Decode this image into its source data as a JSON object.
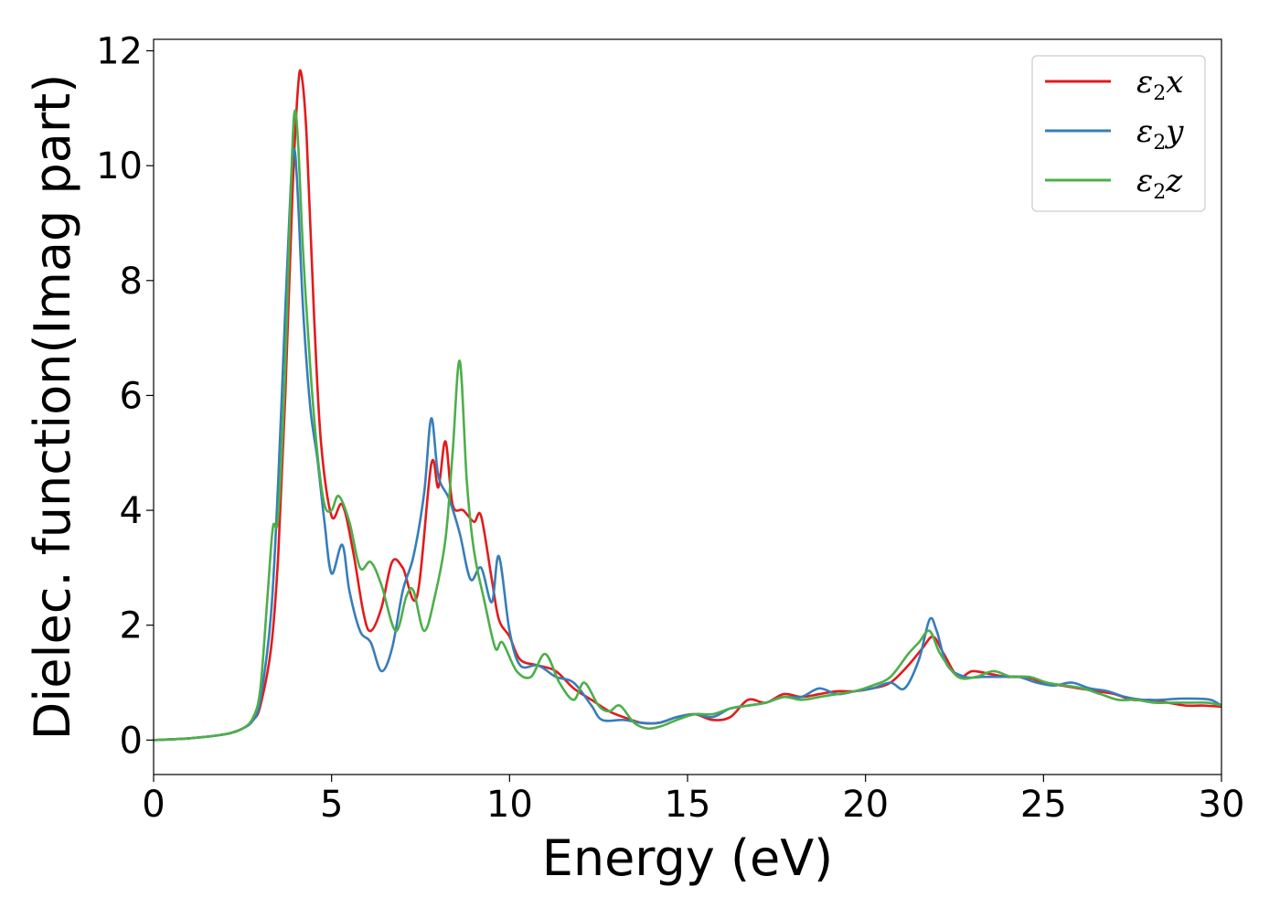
{
  "chart_data": {
    "type": "line",
    "xlabel": "Energy (eV)",
    "ylabel": "Dielec. function(Imag part)",
    "xlim": [
      0,
      30
    ],
    "ylim": [
      -0.6,
      12.2
    ],
    "xticks": [
      0,
      5,
      10,
      15,
      20,
      25,
      30
    ],
    "xtick_labels": [
      "0",
      "5",
      "10",
      "15",
      "20",
      "25",
      "30"
    ],
    "yticks": [
      0,
      2,
      4,
      6,
      8,
      10,
      12
    ],
    "ytick_labels": [
      "0",
      "2",
      "4",
      "6",
      "8",
      "10",
      "12"
    ],
    "grid": false,
    "legend_position": "top-right",
    "series": [
      {
        "name": "ε2x",
        "legend_base": "ε",
        "legend_sub": "2",
        "legend_suffix": "x",
        "color": "#e41a1c",
        "points": [
          [
            0,
            0
          ],
          [
            1,
            0.03
          ],
          [
            2,
            0.1
          ],
          [
            2.5,
            0.2
          ],
          [
            2.8,
            0.35
          ],
          [
            3,
            0.6
          ],
          [
            3.3,
            1.6
          ],
          [
            3.5,
            3.2
          ],
          [
            3.7,
            6
          ],
          [
            3.9,
            9.5
          ],
          [
            4.05,
            11.3
          ],
          [
            4.15,
            11.6
          ],
          [
            4.3,
            10.5
          ],
          [
            4.5,
            7.5
          ],
          [
            4.7,
            5.2
          ],
          [
            5,
            3.9
          ],
          [
            5.3,
            4.1
          ],
          [
            5.6,
            3.3
          ],
          [
            5.9,
            2.2
          ],
          [
            6.1,
            1.9
          ],
          [
            6.4,
            2.3
          ],
          [
            6.7,
            3.1
          ],
          [
            7,
            3
          ],
          [
            7.4,
            2.5
          ],
          [
            7.8,
            4.8
          ],
          [
            8,
            4.4
          ],
          [
            8.2,
            5.2
          ],
          [
            8.4,
            4.1
          ],
          [
            8.7,
            4
          ],
          [
            9,
            3.8
          ],
          [
            9.2,
            3.9
          ],
          [
            9.5,
            2.8
          ],
          [
            9.7,
            2.1
          ],
          [
            10,
            1.8
          ],
          [
            10.3,
            1.4
          ],
          [
            10.8,
            1.3
          ],
          [
            11.3,
            1.2
          ],
          [
            11.8,
            0.9
          ],
          [
            12.3,
            0.7
          ],
          [
            12.8,
            0.5
          ],
          [
            13.2,
            0.4
          ],
          [
            13.7,
            0.3
          ],
          [
            14.2,
            0.3
          ],
          [
            14.7,
            0.4
          ],
          [
            15.2,
            0.45
          ],
          [
            15.7,
            0.35
          ],
          [
            16.2,
            0.4
          ],
          [
            16.7,
            0.7
          ],
          [
            17.2,
            0.65
          ],
          [
            17.7,
            0.8
          ],
          [
            18.2,
            0.75
          ],
          [
            18.7,
            0.8
          ],
          [
            19.2,
            0.85
          ],
          [
            19.7,
            0.85
          ],
          [
            20.2,
            0.9
          ],
          [
            20.7,
            1.0
          ],
          [
            21.2,
            1.3
          ],
          [
            21.6,
            1.6
          ],
          [
            21.9,
            1.8
          ],
          [
            22.2,
            1.5
          ],
          [
            22.6,
            1.1
          ],
          [
            23,
            1.2
          ],
          [
            23.5,
            1.15
          ],
          [
            24,
            1.1
          ],
          [
            24.5,
            1.1
          ],
          [
            25,
            1.0
          ],
          [
            25.5,
            0.95
          ],
          [
            26,
            0.9
          ],
          [
            26.5,
            0.85
          ],
          [
            27,
            0.8
          ],
          [
            27.5,
            0.7
          ],
          [
            28,
            0.7
          ],
          [
            28.5,
            0.65
          ],
          [
            29,
            0.6
          ],
          [
            29.5,
            0.6
          ],
          [
            30,
            0.58
          ]
        ]
      },
      {
        "name": "ε2y",
        "legend_base": "ε",
        "legend_sub": "2",
        "legend_suffix": "y",
        "color": "#377eb8",
        "points": [
          [
            0,
            0
          ],
          [
            1,
            0.03
          ],
          [
            2,
            0.1
          ],
          [
            2.5,
            0.2
          ],
          [
            2.8,
            0.35
          ],
          [
            3,
            0.7
          ],
          [
            3.3,
            2.2
          ],
          [
            3.5,
            4.5
          ],
          [
            3.7,
            7.5
          ],
          [
            3.85,
            9.6
          ],
          [
            3.95,
            10.3
          ],
          [
            4.05,
            9.5
          ],
          [
            4.2,
            7.5
          ],
          [
            4.4,
            5.8
          ],
          [
            4.6,
            4.9
          ],
          [
            4.8,
            3.8
          ],
          [
            5,
            2.9
          ],
          [
            5.3,
            3.4
          ],
          [
            5.5,
            2.6
          ],
          [
            5.8,
            1.9
          ],
          [
            6.1,
            1.7
          ],
          [
            6.4,
            1.2
          ],
          [
            6.7,
            1.6
          ],
          [
            7,
            2.6
          ],
          [
            7.3,
            3.2
          ],
          [
            7.6,
            4.3
          ],
          [
            7.8,
            5.6
          ],
          [
            8,
            4.6
          ],
          [
            8.3,
            4.2
          ],
          [
            8.6,
            3.6
          ],
          [
            8.9,
            2.8
          ],
          [
            9.2,
            3.0
          ],
          [
            9.5,
            2.4
          ],
          [
            9.7,
            3.2
          ],
          [
            10,
            1.9
          ],
          [
            10.3,
            1.3
          ],
          [
            10.8,
            1.3
          ],
          [
            11.3,
            1.1
          ],
          [
            11.8,
            1.0
          ],
          [
            12.3,
            0.6
          ],
          [
            12.6,
            0.35
          ],
          [
            13.2,
            0.35
          ],
          [
            13.7,
            0.3
          ],
          [
            14.2,
            0.3
          ],
          [
            14.7,
            0.4
          ],
          [
            15.2,
            0.45
          ],
          [
            15.7,
            0.4
          ],
          [
            16.2,
            0.55
          ],
          [
            16.7,
            0.6
          ],
          [
            17.2,
            0.65
          ],
          [
            17.7,
            0.75
          ],
          [
            18.2,
            0.75
          ],
          [
            18.7,
            0.9
          ],
          [
            19.2,
            0.8
          ],
          [
            19.7,
            0.85
          ],
          [
            20.2,
            0.9
          ],
          [
            20.7,
            1.0
          ],
          [
            21.1,
            0.9
          ],
          [
            21.5,
            1.4
          ],
          [
            21.8,
            2.1
          ],
          [
            22,
            1.9
          ],
          [
            22.3,
            1.3
          ],
          [
            22.8,
            1.1
          ],
          [
            23.3,
            1.1
          ],
          [
            23.8,
            1.1
          ],
          [
            24.3,
            1.1
          ],
          [
            24.8,
            1.0
          ],
          [
            25.3,
            0.95
          ],
          [
            25.8,
            1.0
          ],
          [
            26.3,
            0.9
          ],
          [
            26.8,
            0.85
          ],
          [
            27.3,
            0.75
          ],
          [
            27.8,
            0.7
          ],
          [
            28.3,
            0.7
          ],
          [
            28.8,
            0.72
          ],
          [
            29.3,
            0.72
          ],
          [
            29.7,
            0.7
          ],
          [
            30,
            0.6
          ]
        ]
      },
      {
        "name": "ε2z",
        "legend_base": "ε",
        "legend_sub": "2",
        "legend_suffix": "z",
        "color": "#4daf4a",
        "points": [
          [
            0,
            0
          ],
          [
            1,
            0.03
          ],
          [
            2,
            0.1
          ],
          [
            2.5,
            0.2
          ],
          [
            2.8,
            0.4
          ],
          [
            3,
            0.9
          ],
          [
            3.2,
            2.5
          ],
          [
            3.35,
            3.7
          ],
          [
            3.5,
            3.9
          ],
          [
            3.7,
            6.5
          ],
          [
            3.85,
            9.5
          ],
          [
            3.95,
            10.9
          ],
          [
            4.05,
            10.5
          ],
          [
            4.2,
            8.5
          ],
          [
            4.4,
            6.5
          ],
          [
            4.6,
            5.0
          ],
          [
            4.8,
            4.1
          ],
          [
            5.0,
            4.0
          ],
          [
            5.2,
            4.25
          ],
          [
            5.5,
            3.8
          ],
          [
            5.8,
            3.0
          ],
          [
            6.1,
            3.1
          ],
          [
            6.4,
            2.7
          ],
          [
            6.8,
            1.9
          ],
          [
            7.1,
            2.5
          ],
          [
            7.3,
            2.6
          ],
          [
            7.6,
            1.9
          ],
          [
            7.9,
            2.5
          ],
          [
            8.2,
            3.5
          ],
          [
            8.4,
            5.0
          ],
          [
            8.6,
            6.6
          ],
          [
            8.8,
            4.5
          ],
          [
            9.0,
            3.3
          ],
          [
            9.3,
            2.4
          ],
          [
            9.6,
            1.6
          ],
          [
            9.8,
            1.7
          ],
          [
            10.2,
            1.2
          ],
          [
            10.6,
            1.1
          ],
          [
            11.0,
            1.5
          ],
          [
            11.4,
            1.0
          ],
          [
            11.8,
            0.7
          ],
          [
            12.1,
            1.0
          ],
          [
            12.5,
            0.6
          ],
          [
            12.8,
            0.5
          ],
          [
            13.1,
            0.6
          ],
          [
            13.5,
            0.3
          ],
          [
            13.9,
            0.2
          ],
          [
            14.3,
            0.25
          ],
          [
            14.7,
            0.35
          ],
          [
            15.2,
            0.45
          ],
          [
            15.7,
            0.45
          ],
          [
            16.2,
            0.55
          ],
          [
            16.7,
            0.6
          ],
          [
            17.2,
            0.65
          ],
          [
            17.7,
            0.75
          ],
          [
            18.2,
            0.7
          ],
          [
            18.7,
            0.75
          ],
          [
            19.2,
            0.8
          ],
          [
            19.7,
            0.85
          ],
          [
            20.2,
            0.95
          ],
          [
            20.7,
            1.1
          ],
          [
            21.2,
            1.5
          ],
          [
            21.5,
            1.7
          ],
          [
            21.8,
            1.9
          ],
          [
            22.1,
            1.5
          ],
          [
            22.6,
            1.1
          ],
          [
            23.1,
            1.1
          ],
          [
            23.6,
            1.2
          ],
          [
            24.1,
            1.1
          ],
          [
            24.6,
            1.1
          ],
          [
            25.1,
            1.0
          ],
          [
            25.6,
            0.95
          ],
          [
            26.1,
            0.9
          ],
          [
            26.6,
            0.8
          ],
          [
            27.1,
            0.7
          ],
          [
            27.6,
            0.7
          ],
          [
            28.1,
            0.65
          ],
          [
            28.6,
            0.65
          ],
          [
            29.1,
            0.65
          ],
          [
            29.6,
            0.65
          ],
          [
            30,
            0.6
          ]
        ]
      }
    ]
  }
}
